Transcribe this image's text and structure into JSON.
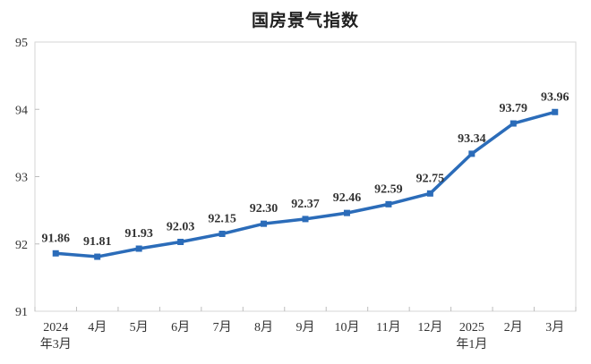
{
  "chart_data": {
    "type": "line",
    "title": "国房景气指数",
    "series_name": "国房景气指数",
    "categories": [
      "2024\n年3月",
      "4月",
      "5月",
      "6月",
      "7月",
      "8月",
      "9月",
      "10月",
      "11月",
      "12月",
      "2025\n年1月",
      "2月",
      "3月"
    ],
    "values": [
      91.86,
      91.81,
      91.93,
      92.03,
      92.15,
      92.3,
      92.37,
      92.46,
      92.59,
      92.75,
      93.34,
      93.79,
      93.96
    ],
    "data_labels": [
      "91.86",
      "91.81",
      "91.93",
      "92.03",
      "92.15",
      "92.30",
      "92.37",
      "92.46",
      "92.59",
      "92.75",
      "93.34",
      "93.79",
      "93.96"
    ],
    "y_ticks": [
      91,
      92,
      93,
      94,
      95
    ],
    "ylim": [
      91,
      95
    ],
    "xlabel": "",
    "ylabel": "",
    "grid": false,
    "legend_position": "none",
    "marker": "square",
    "colors": {
      "line": "#2B6CB9",
      "marker": "#2B6CB9",
      "data_label": "#333333",
      "axis_label": "#333333",
      "plot_border": "#d6d6d6",
      "tick": "#bdbdbd",
      "background": "#ffffff",
      "title": "#1f1f1f"
    }
  }
}
